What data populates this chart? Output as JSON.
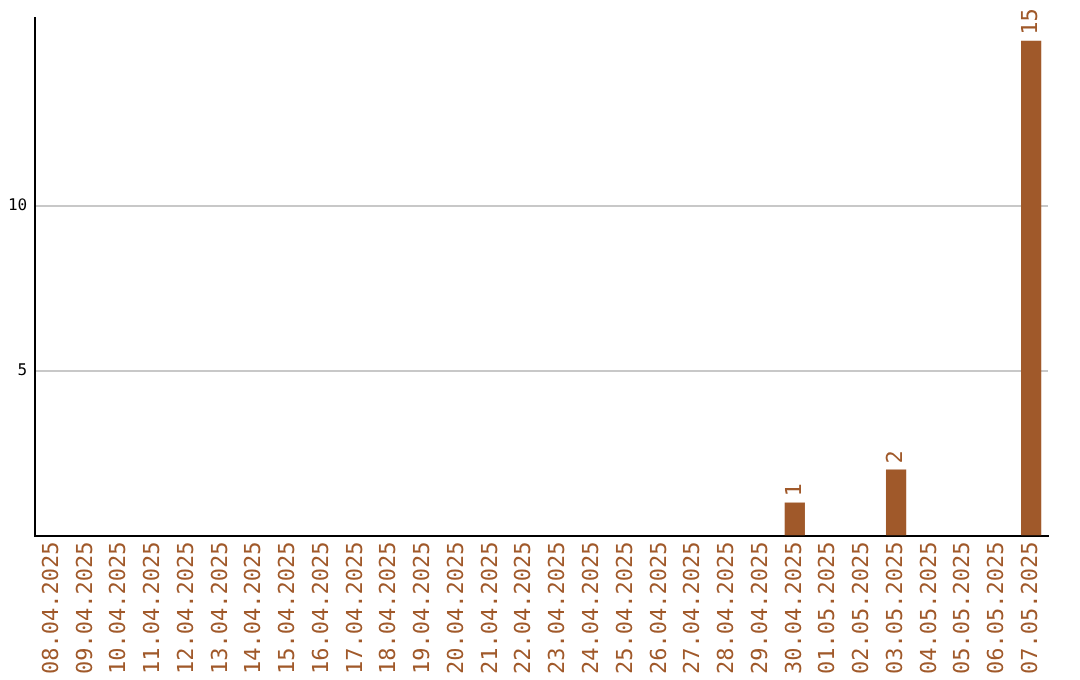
{
  "chart_data": {
    "type": "bar",
    "categories": [
      "08.04.2025",
      "09.04.2025",
      "10.04.2025",
      "11.04.2025",
      "12.04.2025",
      "13.04.2025",
      "14.04.2025",
      "15.04.2025",
      "16.04.2025",
      "17.04.2025",
      "18.04.2025",
      "19.04.2025",
      "20.04.2025",
      "21.04.2025",
      "22.04.2025",
      "23.04.2025",
      "24.04.2025",
      "25.04.2025",
      "26.04.2025",
      "27.04.2025",
      "28.04.2025",
      "29.04.2025",
      "30.04.2025",
      "01.05.2025",
      "02.05.2025",
      "03.05.2025",
      "04.05.2025",
      "05.05.2025",
      "06.05.2025",
      "07.05.2025"
    ],
    "values": [
      0,
      0,
      0,
      0,
      0,
      0,
      0,
      0,
      0,
      0,
      0,
      0,
      0,
      0,
      0,
      0,
      0,
      0,
      0,
      0,
      0,
      0,
      1,
      0,
      0,
      2,
      0,
      0,
      0,
      15
    ],
    "value_labels": [
      null,
      null,
      null,
      null,
      null,
      null,
      null,
      null,
      null,
      null,
      null,
      null,
      null,
      null,
      null,
      null,
      null,
      null,
      null,
      null,
      null,
      null,
      "1",
      null,
      null,
      "2",
      null,
      null,
      null,
      "15"
    ],
    "color": "#a0592a",
    "ylim": [
      0,
      15.7
    ],
    "yticks": [
      5,
      10
    ],
    "grid": "y",
    "legend": false
  }
}
